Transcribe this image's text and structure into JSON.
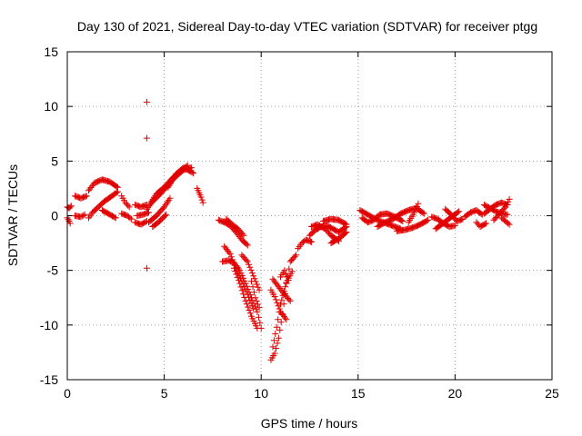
{
  "chart_data": {
    "type": "scatter",
    "title": "Day 130 of 2021, Sidereal Day-to-day VTEC variation (SDTVAR) for receiver ptgg",
    "xlabel": "GPS time / hours",
    "ylabel": "SDTVAR / TECUs",
    "xlim": [
      0,
      25
    ],
    "ylim": [
      -15,
      15
    ],
    "xticks": [
      0,
      5,
      10,
      15,
      20,
      25
    ],
    "yticks": [
      -15,
      -10,
      -5,
      0,
      5,
      10,
      15
    ],
    "xtick_labels": [
      "0",
      "5",
      "10",
      "15",
      "20",
      "25"
    ],
    "ytick_labels": [
      "-15",
      "-10",
      "-5",
      "0",
      "5",
      "10",
      "15"
    ],
    "grid": true,
    "marker": "+",
    "color": "#e00000",
    "segments": [
      {
        "x": [
          0.0,
          0.1,
          0.2
        ],
        "y": [
          0.8,
          0.7,
          0.9
        ]
      },
      {
        "x": [
          0.0,
          0.1,
          0.15
        ],
        "y": [
          -0.2,
          -0.5,
          -0.7
        ]
      },
      {
        "x": [
          0.4,
          0.7,
          1.0
        ],
        "y": [
          1.8,
          1.6,
          1.8
        ]
      },
      {
        "x": [
          0.4,
          0.7,
          0.9
        ],
        "y": [
          0.0,
          -0.1,
          0.1
        ]
      },
      {
        "x": [
          1.1,
          1.4,
          1.8,
          2.2,
          2.6
        ],
        "y": [
          2.3,
          3.0,
          3.3,
          3.1,
          2.6
        ]
      },
      {
        "x": [
          1.1,
          1.3,
          1.6,
          1.9,
          2.3,
          2.6
        ],
        "y": [
          -0.2,
          0.3,
          0.8,
          1.3,
          1.8,
          2.2
        ]
      },
      {
        "x": [
          1.8,
          2.2,
          2.5
        ],
        "y": [
          0.5,
          0.1,
          -0.2
        ]
      },
      {
        "x": [
          2.8,
          3.0,
          3.2
        ],
        "y": [
          1.8,
          1.2,
          0.8
        ]
      },
      {
        "x": [
          2.8,
          3.1,
          3.3
        ],
        "y": [
          0.2,
          0.0,
          -0.3
        ]
      },
      {
        "x": [
          3.5,
          3.8,
          4.1
        ],
        "y": [
          1.0,
          0.8,
          1.0
        ]
      },
      {
        "x": [
          3.5,
          3.8,
          4.1
        ],
        "y": [
          -0.6,
          -0.8,
          -0.5
        ]
      },
      {
        "x": [
          3.6,
          3.9,
          4.2
        ],
        "y": [
          0.0,
          0.1,
          0.3
        ]
      },
      {
        "x": [
          4.1,
          4.4,
          4.8,
          5.2,
          5.6,
          6.0,
          6.4
        ],
        "y": [
          0.6,
          1.3,
          2.0,
          2.8,
          3.6,
          4.2,
          4.4
        ]
      },
      {
        "x": [
          4.3,
          4.6,
          5.0,
          5.4,
          5.8,
          6.2
        ],
        "y": [
          1.2,
          2.0,
          2.6,
          3.4,
          4.0,
          4.6
        ]
      },
      {
        "x": [
          4.2,
          4.6,
          5.0,
          5.3
        ],
        "y": [
          -0.6,
          0.0,
          0.8,
          1.6
        ]
      },
      {
        "x": [
          4.4,
          4.7,
          5.1
        ],
        "y": [
          -1.0,
          -0.6,
          0.1
        ]
      },
      {
        "x": [
          5.2,
          5.6,
          6.0,
          6.5
        ],
        "y": [
          2.6,
          3.8,
          4.4,
          3.9
        ]
      },
      {
        "x": [
          6.7,
          6.8,
          6.9,
          7.0
        ],
        "y": [
          2.5,
          2.1,
          1.7,
          1.2
        ]
      },
      {
        "x": [
          7.8,
          8.1,
          8.4,
          8.7,
          9.0,
          9.3
        ],
        "y": [
          -0.4,
          -0.6,
          -0.9,
          -1.5,
          -2.2,
          -2.7
        ]
      },
      {
        "x": [
          8.2,
          8.5,
          8.8,
          9.1
        ],
        "y": [
          -0.3,
          -0.8,
          -1.2,
          -1.8
        ]
      },
      {
        "x": [
          8.0,
          8.3,
          8.6,
          8.9,
          9.2,
          9.5,
          9.8,
          10.0
        ],
        "y": [
          -4.2,
          -4.1,
          -4.3,
          -5.0,
          -6.2,
          -7.5,
          -8.8,
          -10.3
        ]
      },
      {
        "x": [
          8.1,
          8.4,
          8.7,
          9.0,
          9.3,
          9.6
        ],
        "y": [
          -2.8,
          -3.5,
          -4.8,
          -6.0,
          -7.2,
          -8.5
        ]
      },
      {
        "x": [
          8.6,
          8.9,
          9.2,
          9.5,
          9.8
        ],
        "y": [
          -4.8,
          -6.2,
          -7.8,
          -9.2,
          -10.3
        ]
      },
      {
        "x": [
          9.0,
          9.3,
          9.6,
          9.9
        ],
        "y": [
          -3.6,
          -4.2,
          -5.5,
          -6.8
        ]
      },
      {
        "x": [
          9.5,
          9.7,
          9.9
        ],
        "y": [
          -6.0,
          -7.5,
          -8.4
        ]
      },
      {
        "x": [
          10.5,
          10.7,
          10.9,
          11.1,
          11.3,
          11.5,
          11.8
        ],
        "y": [
          -13.2,
          -12.6,
          -11.2,
          -9.0,
          -6.2,
          -4.2,
          -3.6
        ]
      },
      {
        "x": [
          10.6,
          10.8,
          11.0,
          11.3,
          11.6
        ],
        "y": [
          -12.0,
          -10.2,
          -8.1,
          -6.1,
          -5.1
        ]
      },
      {
        "x": [
          10.5,
          10.7,
          11.0,
          11.3
        ],
        "y": [
          -6.8,
          -7.4,
          -8.8,
          -9.5
        ]
      },
      {
        "x": [
          10.6,
          10.9,
          11.2,
          11.5
        ],
        "y": [
          -5.8,
          -6.5,
          -7.2,
          -7.8
        ]
      },
      {
        "x": [
          11.0,
          11.2,
          11.4
        ],
        "y": [
          -5.6,
          -5.0,
          -5.9
        ]
      },
      {
        "x": [
          11.9,
          12.1,
          12.3,
          12.6
        ],
        "y": [
          -3.0,
          -2.5,
          -2.2,
          -2.4
        ]
      },
      {
        "x": [
          12.5,
          12.8,
          13.1,
          13.4,
          13.7,
          14.0,
          14.4
        ],
        "y": [
          -1.8,
          -1.3,
          -1.0,
          -0.9,
          -1.2,
          -1.5,
          -1.0
        ]
      },
      {
        "x": [
          12.6,
          12.9,
          13.3,
          13.6,
          14.0
        ],
        "y": [
          -1.0,
          -0.8,
          -1.2,
          -1.8,
          -2.3
        ]
      },
      {
        "x": [
          13.2,
          13.6,
          14.0,
          14.4
        ],
        "y": [
          -0.5,
          -0.3,
          -0.4,
          -0.8
        ]
      },
      {
        "x": [
          13.6,
          14.0,
          14.4
        ],
        "y": [
          -2.5,
          -2.1,
          -1.5
        ]
      },
      {
        "x": [
          15.1,
          15.4,
          15.7,
          16.0,
          16.3,
          16.6,
          16.9,
          17.2
        ],
        "y": [
          0.5,
          0.2,
          -0.1,
          -0.4,
          -0.6,
          -0.8,
          -1.0,
          -1.2
        ]
      },
      {
        "x": [
          15.2,
          15.5,
          15.8,
          16.1,
          16.5,
          16.9,
          17.3
        ],
        "y": [
          -0.2,
          -0.6,
          -0.4,
          0.1,
          0.2,
          -0.1,
          -0.5
        ]
      },
      {
        "x": [
          16.0,
          16.4,
          16.8,
          17.2,
          17.6,
          18.0,
          18.4
        ],
        "y": [
          -1.0,
          -0.6,
          -0.3,
          0.2,
          0.5,
          0.7,
          0.2
        ]
      },
      {
        "x": [
          17.0,
          17.4,
          17.8,
          18.2,
          18.6
        ],
        "y": [
          -1.4,
          -1.3,
          -1.1,
          -0.8,
          -0.4
        ]
      },
      {
        "x": [
          17.6,
          17.9,
          18.1
        ],
        "y": [
          -0.6,
          0.3,
          1.1
        ]
      },
      {
        "x": [
          18.8,
          19.1,
          19.4,
          19.7,
          20.0
        ],
        "y": [
          -0.1,
          -0.3,
          -0.7,
          -1.0,
          -0.9
        ]
      },
      {
        "x": [
          19.0,
          19.3,
          19.6,
          19.9,
          20.2
        ],
        "y": [
          -1.2,
          -0.8,
          -0.4,
          0.0,
          0.4
        ]
      },
      {
        "x": [
          19.5,
          19.8,
          20.1,
          20.4
        ],
        "y": [
          0.6,
          0.1,
          -0.5,
          -0.3
        ]
      },
      {
        "x": [
          20.5,
          20.8,
          21.1,
          21.4
        ],
        "y": [
          -0.1,
          0.3,
          0.5,
          0.1
        ]
      },
      {
        "x": [
          21.1,
          21.3,
          21.6
        ],
        "y": [
          -0.6,
          -1.0,
          -0.7
        ]
      },
      {
        "x": [
          21.5,
          21.8,
          22.1,
          22.4,
          22.7
        ],
        "y": [
          0.2,
          0.6,
          1.0,
          1.2,
          1.0
        ]
      },
      {
        "x": [
          21.5,
          21.8,
          22.1,
          22.4,
          22.7
        ],
        "y": [
          1.0,
          0.7,
          0.4,
          0.2,
          0.1
        ]
      },
      {
        "x": [
          22.0,
          22.3,
          22.6,
          22.8
        ],
        "y": [
          -0.4,
          0.2,
          0.8,
          1.5
        ]
      },
      {
        "x": [
          22.4,
          22.6,
          22.8
        ],
        "y": [
          -0.2,
          -0.5,
          -0.8
        ]
      }
    ],
    "isolated_points": [
      {
        "x": 4.1,
        "y": 10.4
      },
      {
        "x": 4.1,
        "y": 7.1
      },
      {
        "x": 4.1,
        "y": -4.8
      }
    ]
  }
}
